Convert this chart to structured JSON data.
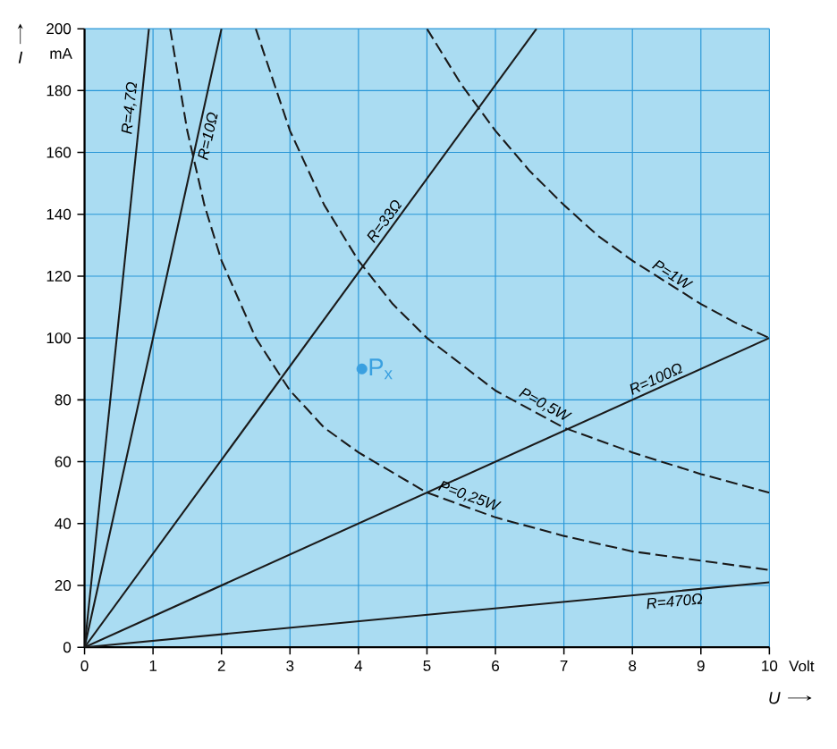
{
  "chart_data": {
    "type": "line",
    "xlabel": "U",
    "ylabel": "I",
    "xlim": [
      0,
      10
    ],
    "ylim": [
      0,
      200
    ],
    "xticks": [
      0,
      1,
      2,
      3,
      4,
      5,
      6,
      7,
      8,
      9,
      10
    ],
    "yticks": [
      0,
      20,
      40,
      60,
      80,
      100,
      120,
      140,
      160,
      180,
      200
    ],
    "grid": true,
    "series": [
      {
        "name": "R=4,7Ω",
        "color": "#1a1a1a",
        "line_style": "solid",
        "x": [
          0,
          0.94
        ],
        "values": [
          0,
          200
        ]
      },
      {
        "name": "R=10Ω",
        "color": "#1a1a1a",
        "line_style": "solid",
        "x": [
          0,
          2
        ],
        "values": [
          0,
          200
        ]
      },
      {
        "name": "R=33Ω",
        "color": "#1a1a1a",
        "line_style": "solid",
        "x": [
          0,
          6.6
        ],
        "values": [
          0,
          200
        ]
      },
      {
        "name": "R=100Ω",
        "color": "#1a1a1a",
        "line_style": "solid",
        "x": [
          0,
          10
        ],
        "values": [
          0,
          100
        ]
      },
      {
        "name": "R=470Ω",
        "color": "#1a1a1a",
        "line_style": "solid",
        "x": [
          0,
          10
        ],
        "values": [
          0,
          21
        ]
      },
      {
        "name": "P=1W",
        "color": "#1a1a1a",
        "line_style": "dashed",
        "x": [
          5,
          5.5,
          6,
          6.5,
          7,
          7.5,
          8,
          8.5,
          9,
          9.5,
          10
        ],
        "values": [
          200,
          182,
          167,
          154,
          143,
          133,
          125,
          118,
          111,
          105,
          100
        ]
      },
      {
        "name": "P=0,5W",
        "color": "#1a1a1a",
        "line_style": "dashed",
        "x": [
          2.5,
          3,
          3.5,
          4,
          4.5,
          5,
          6,
          7,
          8,
          9,
          10
        ],
        "values": [
          200,
          167,
          143,
          125,
          111,
          100,
          83,
          71,
          63,
          56,
          50
        ]
      },
      {
        "name": "P=0,25W",
        "color": "#1a1a1a",
        "line_style": "dashed",
        "x": [
          1.25,
          1.5,
          1.75,
          2,
          2.5,
          3,
          3.5,
          4,
          5,
          6,
          7,
          8,
          9,
          10
        ],
        "values": [
          200,
          167,
          143,
          125,
          100,
          83,
          71,
          63,
          50,
          42,
          36,
          31,
          28,
          25
        ]
      },
      {
        "type": "scatter",
        "color": "#3aa0e0",
        "x": [
          4.05
        ],
        "values": [
          90
        ]
      }
    ],
    "annotations": [
      {
        "text": "P$_{x}$",
        "x": 4.05,
        "y": 90
      },
      "mA",
      "Volt"
    ]
  }
}
